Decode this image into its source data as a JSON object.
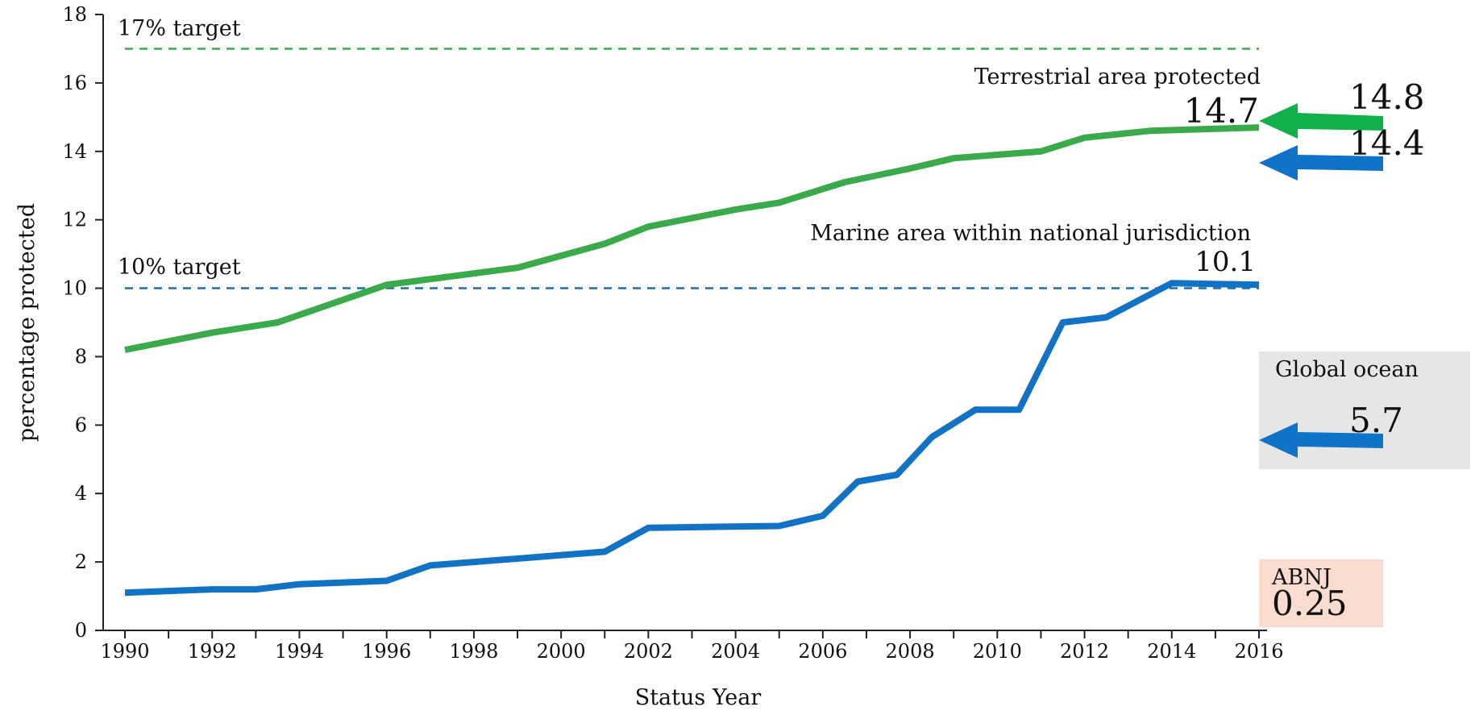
{
  "chart_data": {
    "type": "line",
    "xlabel": "Status Year",
    "ylabel": "percentage protected",
    "xlim": [
      1990,
      2016
    ],
    "ylim": [
      0,
      18
    ],
    "x_ticks": [
      "1990",
      "1992",
      "1994",
      "1996",
      "1998",
      "2000",
      "2002",
      "2004",
      "2006",
      "2008",
      "2010",
      "2012",
      "2014",
      "2016"
    ],
    "y_ticks": [
      "0",
      "2",
      "4",
      "6",
      "8",
      "10",
      "12",
      "14",
      "16",
      "18"
    ],
    "series": [
      {
        "name": "Terrestrial area protected",
        "color": "#3aaa4a",
        "x": [
          1990,
          1992,
          1993.5,
          1996,
          1999,
          2001,
          2002,
          2004,
          2005,
          2006.5,
          2008,
          2009,
          2011,
          2012,
          2013.5,
          2016
        ],
        "y": [
          8.2,
          8.7,
          9.0,
          10.1,
          10.6,
          11.3,
          11.8,
          12.3,
          12.5,
          13.1,
          13.5,
          13.8,
          14.0,
          14.4,
          14.6,
          14.7
        ]
      },
      {
        "name": "Marine area within national jurisdiction",
        "color": "#1272c4",
        "x": [
          1990,
          1992,
          1993,
          1994,
          1996,
          1997,
          2001,
          2002,
          2005,
          2006,
          2006.8,
          2007.7,
          2008.5,
          2009.5,
          2010.5,
          2011.5,
          2012.5,
          2014,
          2016
        ],
        "y": [
          1.1,
          1.2,
          1.2,
          1.35,
          1.45,
          1.9,
          2.3,
          3.0,
          3.05,
          3.35,
          4.35,
          4.55,
          5.65,
          6.45,
          6.45,
          9.0,
          9.15,
          10.15,
          10.1
        ]
      }
    ],
    "reference_lines": [
      {
        "label": "17% target",
        "y": 17,
        "color": "#3aaa4a"
      },
      {
        "label": "10% target",
        "y": 10,
        "color": "#1a6fb4"
      }
    ],
    "annotations": {
      "terrestrial_label": "Terrestrial area protected",
      "terrestrial_value": "14.7",
      "terrestrial_arrow_value": "14.8",
      "marine_label": "Marine area within national jurisdiction",
      "marine_value": "10.1",
      "marine_arrow_value": "14.4",
      "global_ocean_label": "Global ocean",
      "global_ocean_value": "5.7",
      "abnj_label": "ABNJ",
      "abnj_value": "0.25"
    },
    "colors": {
      "green": "#3aaa4a",
      "blue": "#1272c4",
      "arrow_green": "#12b04a",
      "arrow_blue": "#0f73c8",
      "global_ocean_box": "#e6e6e6",
      "abnj_box": "#f7dccf"
    },
    "grid": false
  }
}
